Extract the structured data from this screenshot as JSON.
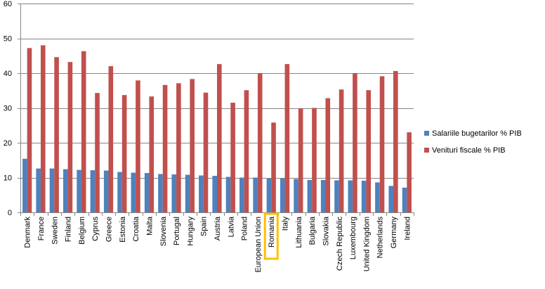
{
  "chart_data": {
    "type": "bar",
    "categories": [
      "Denmark",
      "France",
      "Sweden",
      "Finland",
      "Belgium",
      "Cyprus",
      "Greece",
      "Estonia",
      "Croatia",
      "Malta",
      "Slovenia",
      "Portugal",
      "Hungary",
      "Spain",
      "Austria",
      "Latvia",
      "Poland",
      "European Union",
      "Romania",
      "Italy",
      "Lithuania",
      "Bulgaria",
      "Slovakia",
      "Czech Republic",
      "Luxembourg",
      "United Kingdom",
      "Netherlands",
      "Germany",
      "Ireland"
    ],
    "series": [
      {
        "name": "Salariile bugetarilor % PIB",
        "color": "#4F81BD",
        "values": [
          15.4,
          12.6,
          12.6,
          12.4,
          12.2,
          12.1,
          12.0,
          11.6,
          11.4,
          11.3,
          11.0,
          10.9,
          10.8,
          10.6,
          10.5,
          10.2,
          10.0,
          10.0,
          9.7,
          9.7,
          9.6,
          9.3,
          9.3,
          9.2,
          9.2,
          9.1,
          8.6,
          7.6,
          7.1
        ]
      },
      {
        "name": "Venituri fiscale % PIB",
        "color": "#C0504D",
        "values": [
          47.2,
          48.0,
          44.6,
          43.2,
          46.3,
          34.3,
          42.0,
          33.7,
          37.9,
          33.3,
          36.6,
          37.1,
          38.3,
          34.4,
          42.6,
          31.5,
          35.1,
          40.0,
          25.8,
          42.6,
          29.9,
          30.0,
          32.8,
          35.3,
          40.0,
          35.1,
          39.1,
          40.6,
          23.0
        ]
      }
    ],
    "yticks": [
      0,
      10,
      20,
      30,
      40,
      50,
      60
    ],
    "ylim": [
      0,
      60
    ],
    "grid": true,
    "legend": "right",
    "highlight_category": "Romania",
    "highlight_color": "#FFC000"
  }
}
